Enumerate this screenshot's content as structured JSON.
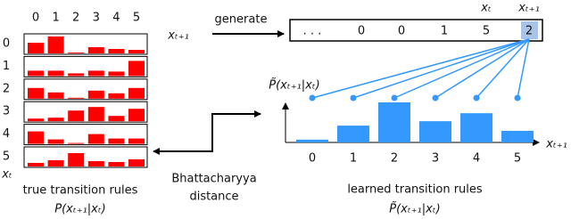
{
  "left_panel": {
    "column_labels": [
      "0",
      "1",
      "2",
      "3",
      "4",
      "5"
    ],
    "row_labels": [
      "0",
      "1",
      "2",
      "3",
      "4",
      "5"
    ],
    "row_axis_label": "xₜ",
    "color": "#ff0000",
    "rows": [
      [
        0.6,
        0.95,
        0.05,
        0.35,
        0.25,
        0.2
      ],
      [
        0.3,
        0.3,
        0.15,
        0.3,
        0.25,
        0.85
      ],
      [
        0.6,
        0.35,
        0.05,
        0.45,
        0.3,
        0.6
      ],
      [
        0.15,
        0.2,
        0.6,
        0.8,
        0.3,
        0.7
      ],
      [
        0.7,
        0.25,
        0.05,
        0.55,
        0.3,
        0.3
      ],
      [
        0.2,
        0.35,
        0.75,
        0.3,
        0.25,
        0.4
      ]
    ],
    "caption": "true transition rules",
    "formula": "P(xₜ₊₁|xₜ)"
  },
  "generate": {
    "label": "generate",
    "variable": "xₜ₊₁"
  },
  "sequence": {
    "items": [
      ". . .",
      "0",
      "0",
      "1",
      "5",
      "2"
    ],
    "labels": [
      "xₜ",
      "xₜ₊₁"
    ]
  },
  "distance": {
    "lines": [
      "Bhattacharyya",
      "distance"
    ]
  },
  "right_panel": {
    "y_label": "P̃(xₜ₊₁|xₜ)",
    "x_label": "xₜ₊₁",
    "color": "#3399ff",
    "categories": [
      "0",
      "1",
      "2",
      "3",
      "4",
      "5"
    ],
    "values": [
      0.07,
      0.42,
      1,
      0.53,
      0.73,
      0.29
    ],
    "caption": "learned transition rules",
    "formula": "P̃(xₜ₊₁|xₜ)"
  }
}
